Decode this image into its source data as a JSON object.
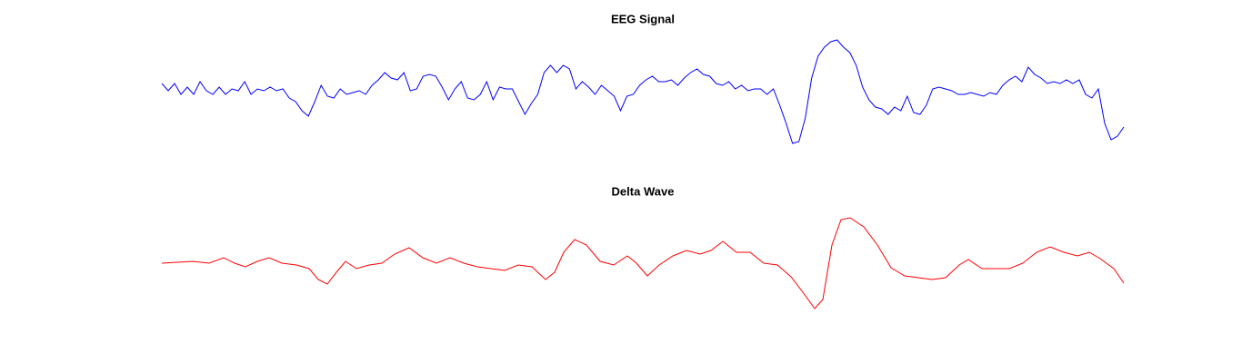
{
  "chart_data": [
    {
      "type": "line",
      "title": "EEG Signal",
      "color": "#0000ff",
      "ylim": [
        -75,
        65
      ],
      "values": [
        8,
        0,
        8,
        -4,
        4,
        -4,
        10,
        0,
        -4,
        4,
        -4,
        2,
        0,
        10,
        -4,
        2,
        0,
        4,
        0,
        2,
        -8,
        -12,
        -22,
        -28,
        -12,
        6,
        -6,
        -8,
        2,
        -4,
        -2,
        0,
        -4,
        6,
        12,
        20,
        14,
        12,
        20,
        0,
        2,
        16,
        18,
        16,
        4,
        -10,
        2,
        10,
        -8,
        -10,
        -4,
        10,
        -10,
        4,
        2,
        2,
        -12,
        -26,
        -14,
        -4,
        20,
        28,
        20,
        28,
        24,
        2,
        10,
        4,
        -4,
        6,
        0,
        -6,
        -22,
        -6,
        -4,
        6,
        12,
        16,
        10,
        10,
        12,
        6,
        14,
        20,
        24,
        18,
        16,
        8,
        6,
        10,
        2,
        6,
        0,
        2,
        2,
        -4,
        2,
        -16,
        -36,
        -58,
        -56,
        -30,
        14,
        38,
        48,
        54,
        56,
        48,
        42,
        28,
        4,
        -10,
        -18,
        -20,
        -26,
        -18,
        -22,
        -6,
        -24,
        -26,
        -16,
        2,
        4,
        2,
        0,
        -4,
        -4,
        -2,
        -4,
        -6,
        -2,
        -4,
        6,
        12,
        16,
        10,
        26,
        18,
        14,
        8,
        10,
        8,
        12,
        8,
        12,
        -4,
        -8,
        2,
        -36,
        -54,
        -50,
        -40
      ]
    },
    {
      "type": "line",
      "title": "Delta Wave",
      "color": "#ff0000",
      "ylim": [
        -65,
        65
      ],
      "xlim": [
        0,
        1058
      ],
      "x": [
        0,
        17,
        34,
        52,
        68,
        80,
        92,
        105,
        118,
        132,
        148,
        162,
        172,
        182,
        192,
        202,
        214,
        228,
        242,
        256,
        272,
        287,
        302,
        317,
        332,
        347,
        362,
        377,
        392,
        407,
        422,
        432,
        442,
        454,
        467,
        482,
        497,
        512,
        522,
        534,
        547,
        562,
        577,
        592,
        604,
        617,
        632,
        647,
        662,
        677,
        692,
        705,
        718,
        727,
        737,
        747,
        757,
        772,
        787,
        802,
        817,
        832,
        847,
        862,
        877,
        887,
        902,
        917,
        932,
        947,
        962,
        977,
        992,
        1007,
        1020,
        1032,
        1047,
        1058
      ],
      "values": [
        0,
        1,
        2,
        0,
        6,
        0,
        -4,
        2,
        6,
        0,
        -2,
        -6,
        -18,
        -23,
        -10,
        2,
        -6,
        -2,
        0,
        10,
        17,
        6,
        0,
        6,
        0,
        -4,
        -6,
        -8,
        -2,
        -4,
        -18,
        -10,
        12,
        26,
        20,
        2,
        -2,
        8,
        0,
        -14,
        -2,
        8,
        14,
        10,
        14,
        24,
        12,
        12,
        0,
        -2,
        -15,
        -32,
        -50,
        -40,
        20,
        48,
        50,
        40,
        20,
        -5,
        -14,
        -16,
        -18,
        -16,
        -2,
        4,
        -6,
        -6,
        -6,
        0,
        12,
        18,
        12,
        8,
        12,
        5,
        -6,
        -22
      ]
    }
  ]
}
